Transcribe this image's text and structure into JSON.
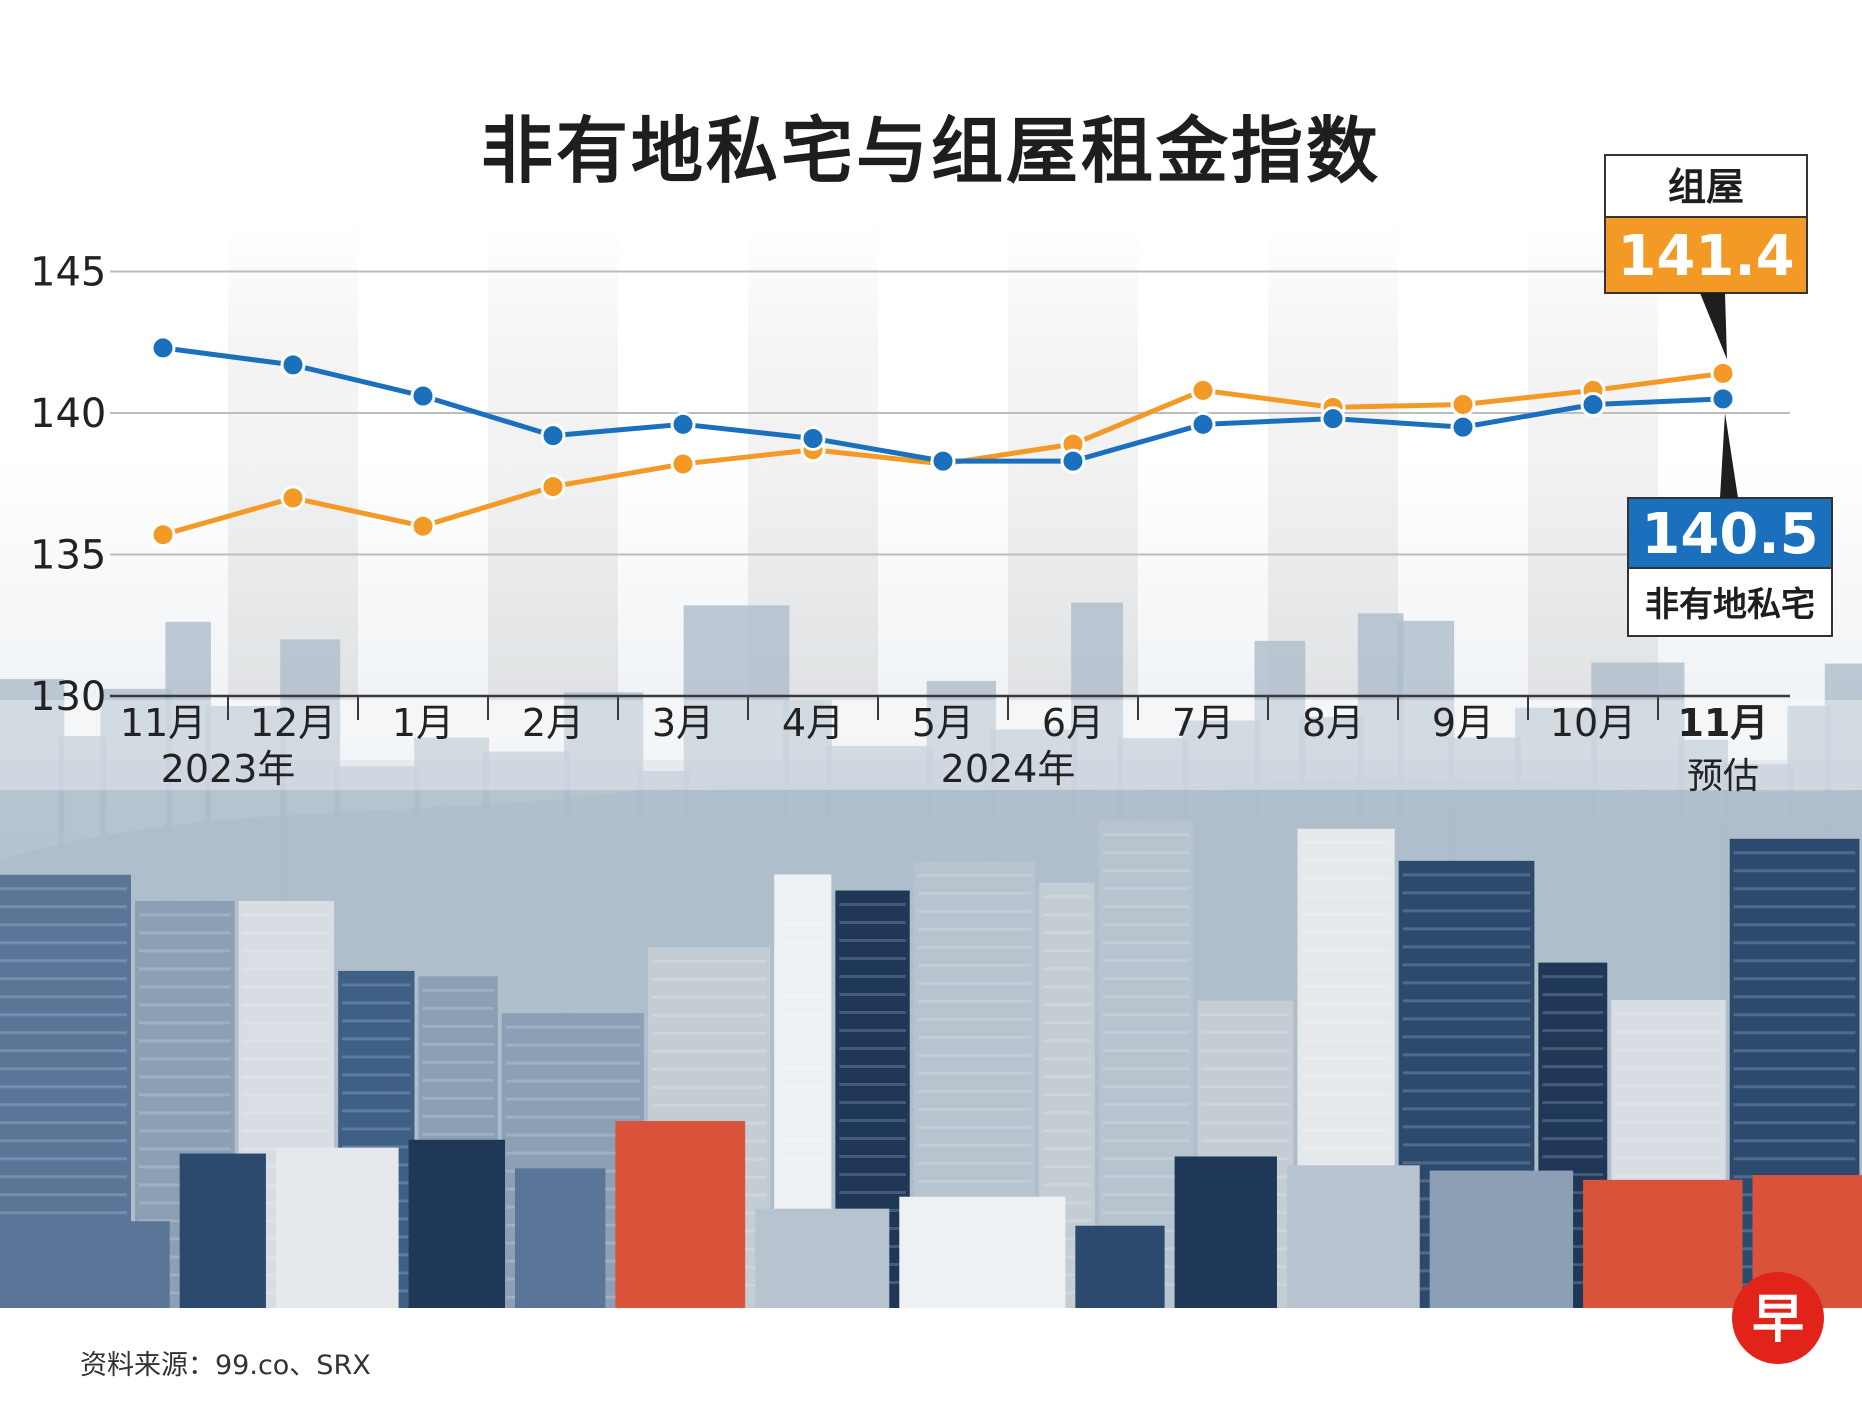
{
  "title": "非有地私宅与组屋租金指数",
  "source": "资料来源：99.co、SRX",
  "logo_char": "早",
  "colors": {
    "hdb": "#f39a26",
    "private": "#1a70bd",
    "grid": "#bdbdbd",
    "axis_text": "#222222",
    "logo": "#e2231a"
  },
  "chart_data": {
    "type": "line",
    "title": "非有地私宅与组屋租金指数",
    "x": [
      "11月",
      "12月",
      "1月",
      "2月",
      "3月",
      "4月",
      "5月",
      "6月",
      "7月",
      "8月",
      "9月",
      "10月",
      "11月"
    ],
    "x_year_labels": [
      "2023年",
      "2024年"
    ],
    "x_last_note": "预估",
    "yticks": [
      130,
      135,
      140,
      145
    ],
    "ylim": [
      130,
      146.5
    ],
    "grid": true,
    "series": [
      {
        "name": "组屋",
        "color": "#f39a26",
        "values": [
          135.7,
          137.0,
          136.0,
          137.4,
          138.2,
          138.7,
          138.2,
          138.9,
          140.8,
          140.2,
          140.3,
          140.8,
          141.4
        ],
        "end_label": "141.4"
      },
      {
        "name": "非有地私宅",
        "color": "#1a70bd",
        "values": [
          142.3,
          141.7,
          140.6,
          139.2,
          139.6,
          139.1,
          138.3,
          138.3,
          139.6,
          139.8,
          139.5,
          140.3,
          140.5
        ],
        "end_label": "140.5"
      }
    ]
  }
}
